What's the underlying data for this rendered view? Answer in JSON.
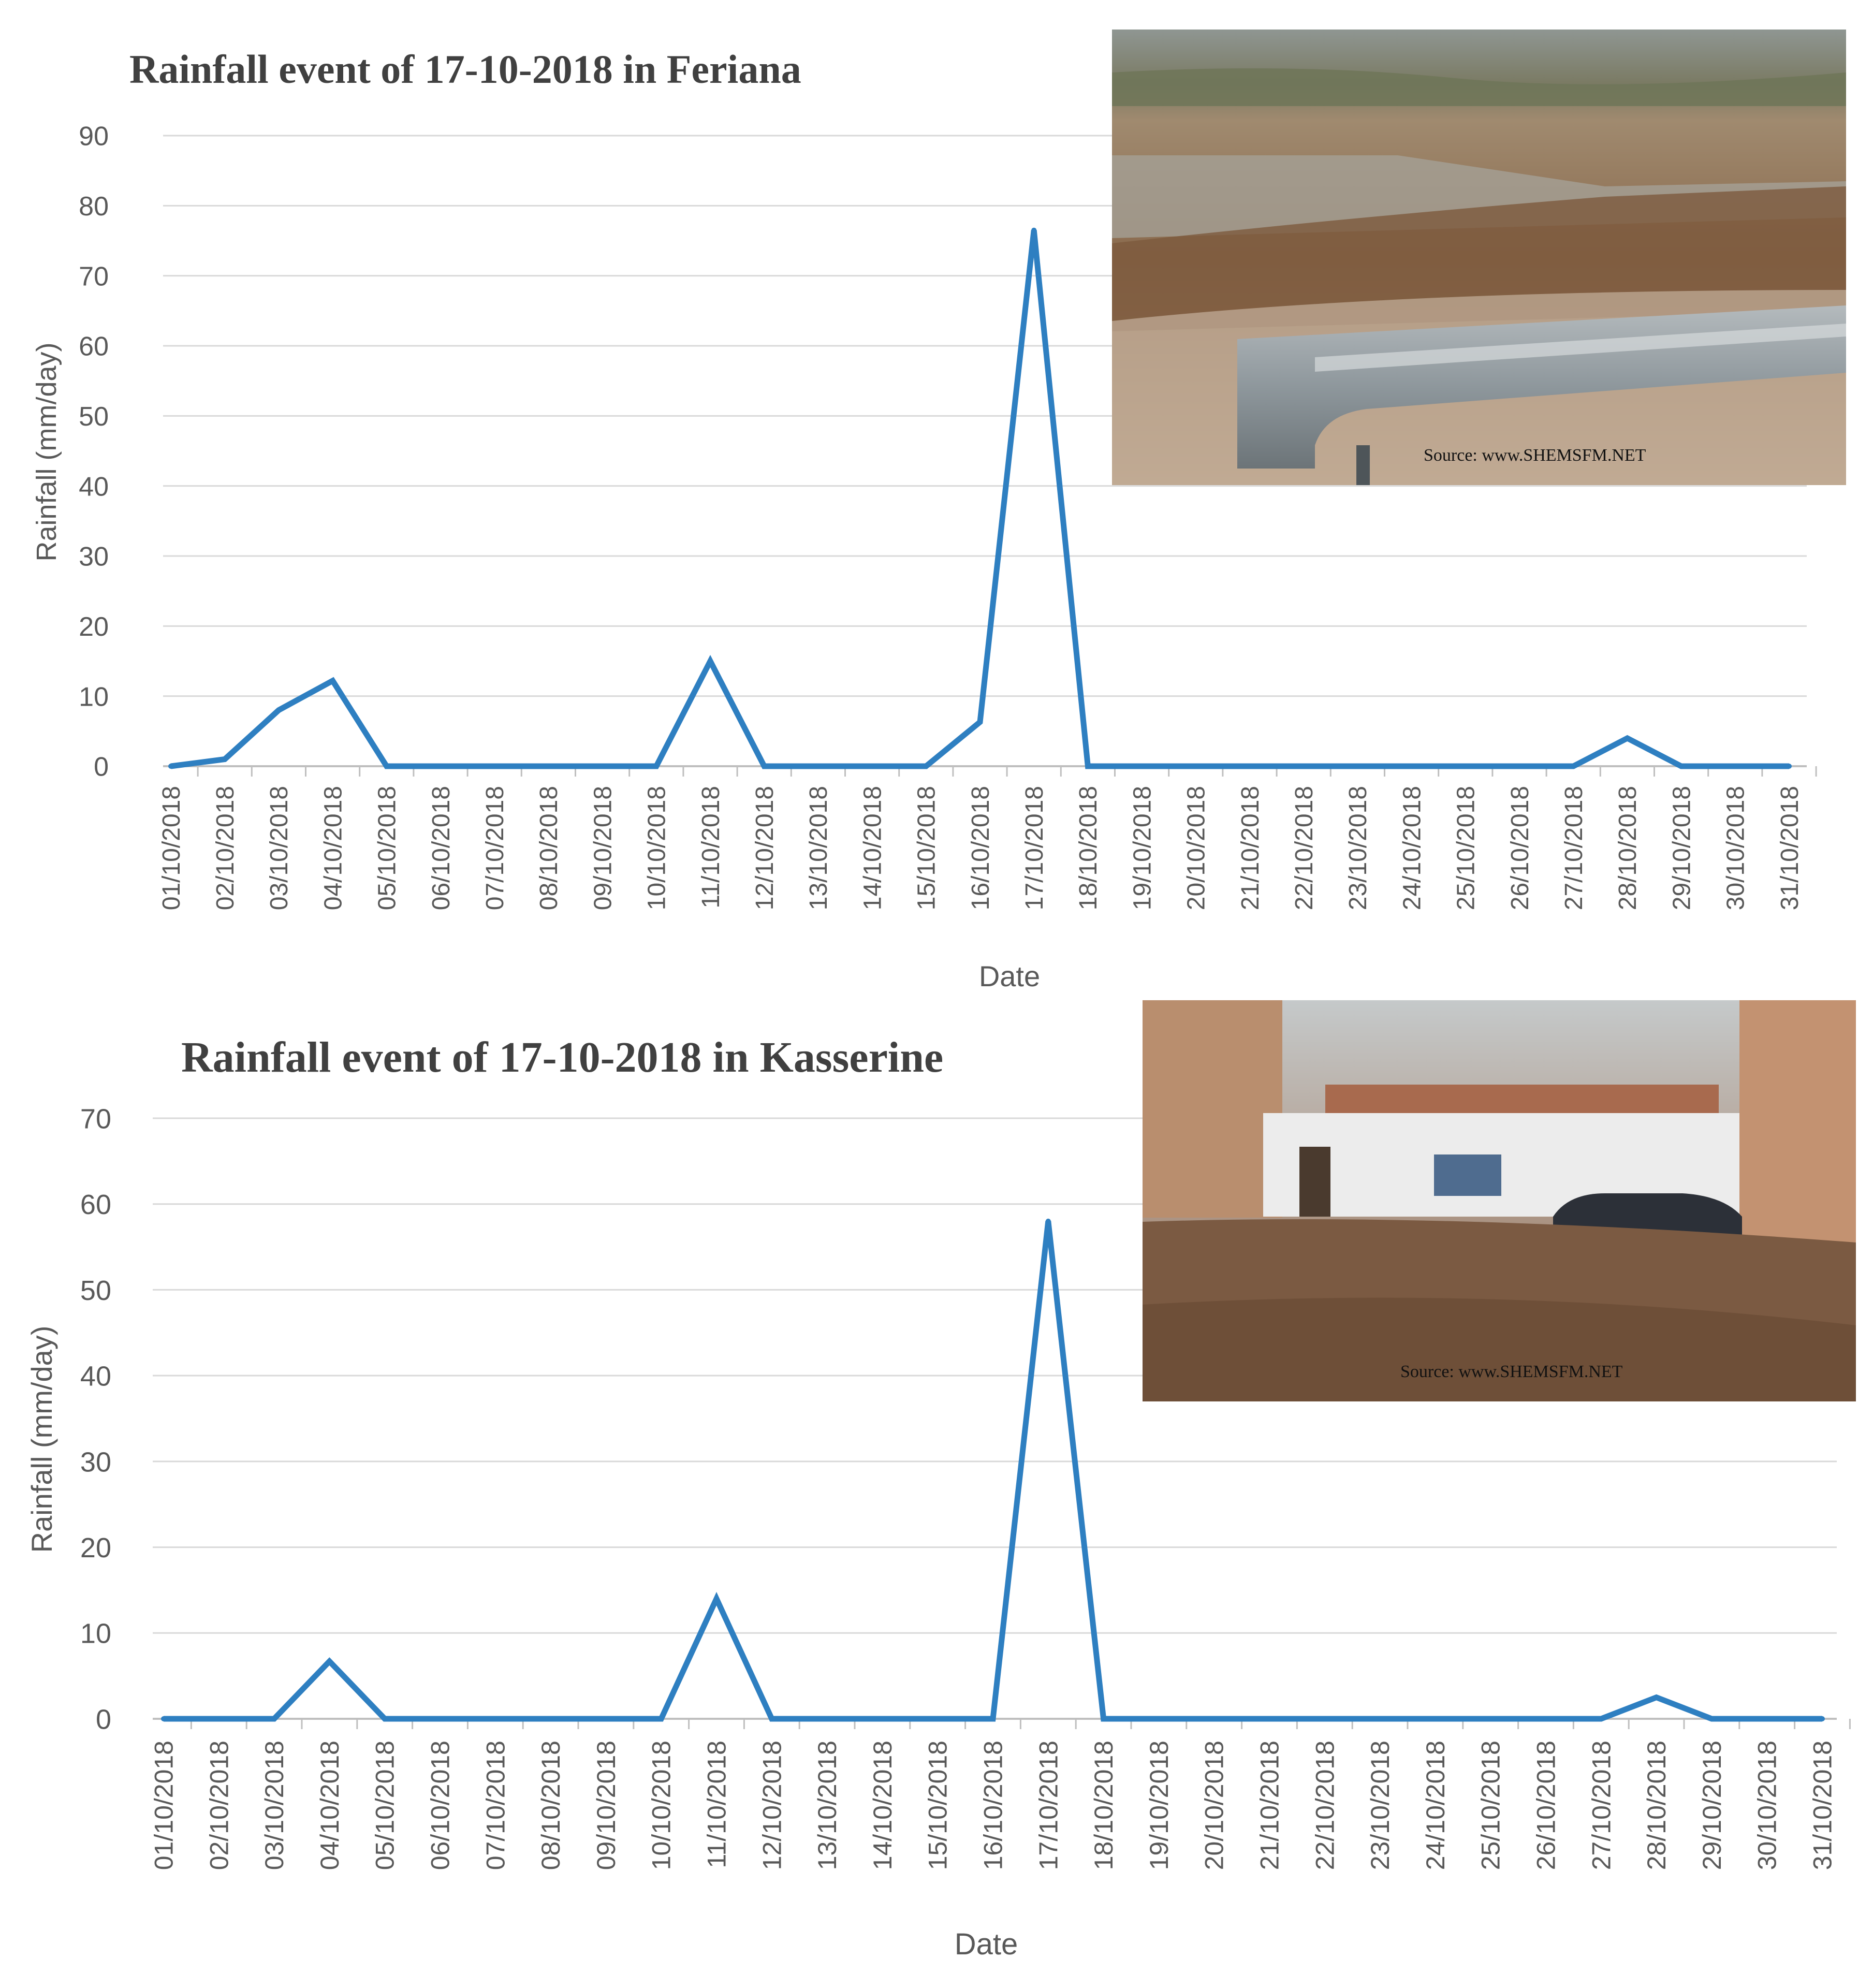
{
  "colors": {
    "series": "#2E7FC1",
    "grid": "#d9d9d9",
    "text": "#595959",
    "title": "#404040"
  },
  "chart_data": [
    {
      "type": "line",
      "title": "Rainfall event of 17-10-2018 in Feriana",
      "xlabel": "Date",
      "ylabel": "Rainfall  (mm/day)",
      "ylim": [
        0,
        90
      ],
      "ytick_step": 10,
      "grid": true,
      "categories": [
        "01/10/2018",
        "02/10/2018",
        "03/10/2018",
        "04/10/2018",
        "05/10/2018",
        "06/10/2018",
        "07/10/2018",
        "08/10/2018",
        "09/10/2018",
        "10/10/2018",
        "11/10/2018",
        "12/10/2018",
        "13/10/2018",
        "14/10/2018",
        "15/10/2018",
        "16/10/2018",
        "17/10/2018",
        "18/10/2018",
        "19/10/2018",
        "20/10/2018",
        "21/10/2018",
        "22/10/2018",
        "23/10/2018",
        "24/10/2018",
        "25/10/2018",
        "26/10/2018",
        "27/10/2018",
        "28/10/2018",
        "29/10/2018",
        "30/10/2018",
        "31/10/2018"
      ],
      "values": [
        0,
        1,
        8,
        12.2,
        0,
        0,
        0,
        0,
        0,
        0,
        15,
        0,
        0,
        0,
        0,
        6.3,
        76.5,
        0,
        0,
        0,
        0,
        0,
        0,
        0,
        0,
        0,
        0,
        4,
        0,
        0,
        0
      ],
      "photo": {
        "type": "flooded river photo",
        "caption": "Source: www.SHEMSFM.NET"
      }
    },
    {
      "type": "line",
      "title": "Rainfall event of 17-10-2018 in Kasserine",
      "xlabel": "Date",
      "ylabel": "Rainfall (mm/day)",
      "ylim": [
        0,
        70
      ],
      "ytick_step": 10,
      "grid": true,
      "categories": [
        "01/10/2018",
        "02/10/2018",
        "03/10/2018",
        "04/10/2018",
        "05/10/2018",
        "06/10/2018",
        "07/10/2018",
        "08/10/2018",
        "09/10/2018",
        "10/10/2018",
        "11/10/2018",
        "12/10/2018",
        "13/10/2018",
        "14/10/2018",
        "15/10/2018",
        "16/10/2018",
        "17/10/2018",
        "18/10/2018",
        "19/10/2018",
        "20/10/2018",
        "21/10/2018",
        "22/10/2018",
        "23/10/2018",
        "24/10/2018",
        "25/10/2018",
        "26/10/2018",
        "27/10/2018",
        "28/10/2018",
        "29/10/2018",
        "30/10/2018",
        "31/10/2018"
      ],
      "values": [
        0,
        0,
        0,
        6.7,
        0,
        0,
        0,
        0,
        0,
        0,
        14,
        0,
        0,
        0,
        0,
        0,
        58,
        0,
        0,
        0,
        0,
        0,
        0,
        0,
        0,
        0,
        0,
        2.5,
        0,
        0,
        0
      ],
      "photo": {
        "type": "flooded street photo",
        "caption": "Source: www.SHEMSFM.NET"
      }
    }
  ]
}
